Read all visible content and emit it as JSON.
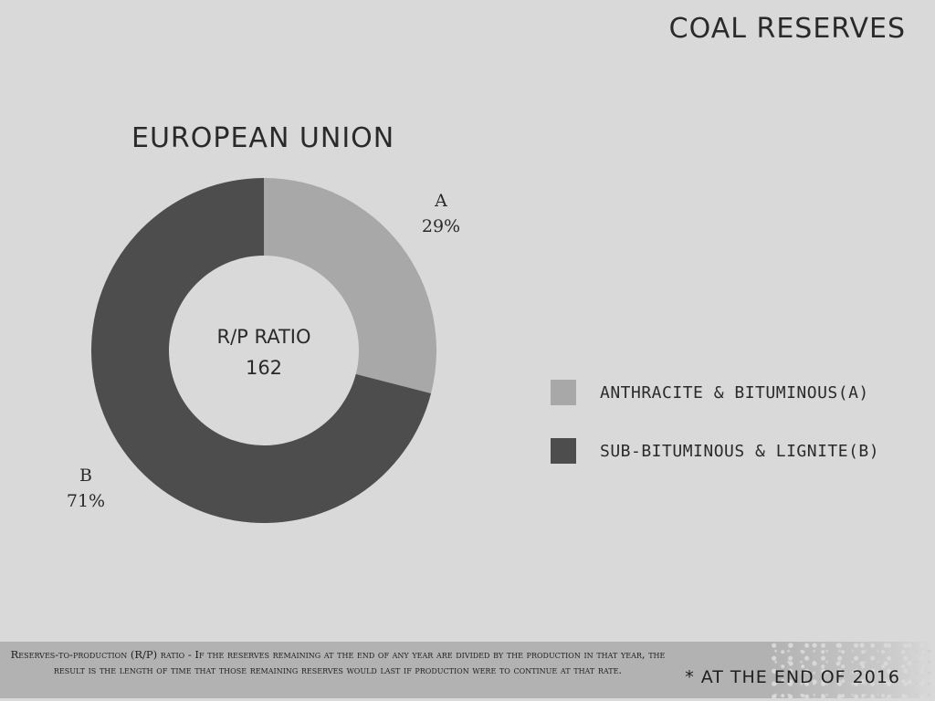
{
  "page": {
    "title": "COAL RESERVES"
  },
  "chart_data": {
    "type": "pie",
    "title": "EUROPEAN UNION",
    "center_label": "R/P RATIO",
    "center_value": "162",
    "slices": [
      {
        "key": "A",
        "label": "A",
        "percent_label": "29%",
        "value": 29,
        "legend": "ANTHRACITE & BITUMINOUS(A)",
        "color": "#a8a8a8"
      },
      {
        "key": "B",
        "label": "B",
        "percent_label": "71%",
        "value": 71,
        "legend": "SUB-BITUMINOUS & LIGNITE(B)",
        "color": "#4d4d4d"
      }
    ],
    "legend_position": "right"
  },
  "footer": {
    "note": "Reserves-to-production (R/P) ratio - If the reserves remaining at the end of any year are divided by the production in that year, the result is the length of time that those remaining reserves would last if production were to continue at that rate.",
    "date": "* AT THE END OF 2016"
  }
}
